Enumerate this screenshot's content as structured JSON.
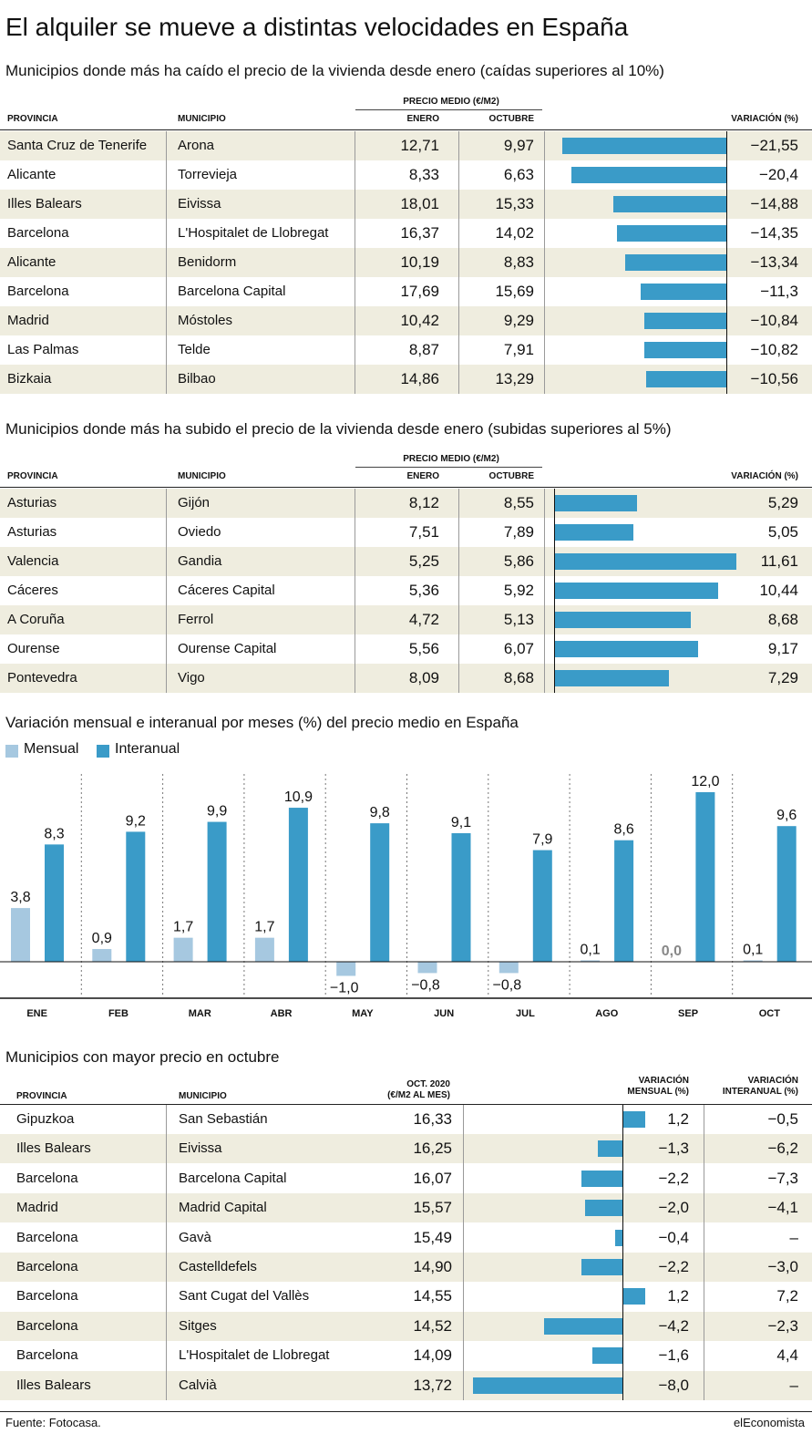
{
  "title": "El alquiler se mueve a distintas velocidades en España",
  "colors": {
    "interanual": "#3a9bc8",
    "mensual": "#a6c8e0",
    "row_shade": "#efeddf"
  },
  "tables": [
    {
      "title": "Municipios donde más ha caído el precio de la vivienda desde enero (caídas superiores al 10%)",
      "group_header": "PRECIO MEDIO (€/M2)",
      "headers": {
        "provincia": "PROVINCIA",
        "municipio": "MUNICIPIO",
        "enero": "ENERO",
        "octubre": "OCTUBRE",
        "variacion": "VARIACIÓN (%)"
      },
      "rows": [
        {
          "provincia": "Santa Cruz de Tenerife",
          "municipio": "Arona",
          "enero": "12,71",
          "octubre": "9,97",
          "variacion_label": "−21,55",
          "variacion": -21.55
        },
        {
          "provincia": "Alicante",
          "municipio": "Torrevieja",
          "enero": "8,33",
          "octubre": "6,63",
          "variacion_label": "−20,4",
          "variacion": -20.4
        },
        {
          "provincia": "Illes Balears",
          "municipio": "Eivissa",
          "enero": "18,01",
          "octubre": "15,33",
          "variacion_label": "−14,88",
          "variacion": -14.88
        },
        {
          "provincia": "Barcelona",
          "municipio": "L'Hospitalet de Llobregat",
          "enero": "16,37",
          "octubre": "14,02",
          "variacion_label": "−14,35",
          "variacion": -14.35
        },
        {
          "provincia": "Alicante",
          "municipio": "Benidorm",
          "enero": "10,19",
          "octubre": "8,83",
          "variacion_label": "−13,34",
          "variacion": -13.34
        },
        {
          "provincia": "Barcelona",
          "municipio": "Barcelona Capital",
          "enero": "17,69",
          "octubre": "15,69",
          "variacion_label": "−11,3",
          "variacion": -11.3
        },
        {
          "provincia": "Madrid",
          "municipio": "Móstoles",
          "enero": "10,42",
          "octubre": "9,29",
          "variacion_label": "−10,84",
          "variacion": -10.84
        },
        {
          "provincia": "Las Palmas",
          "municipio": "Telde",
          "enero": "8,87",
          "octubre": "7,91",
          "variacion_label": "−10,82",
          "variacion": -10.82
        },
        {
          "provincia": "Bizkaia",
          "municipio": "Bilbao",
          "enero": "14,86",
          "octubre": "13,29",
          "variacion_label": "−10,56",
          "variacion": -10.56
        }
      ]
    },
    {
      "title": "Municipios donde más ha subido el precio de la vivienda desde enero (subidas superiores al 5%)",
      "group_header": "PRECIO MEDIO (€/M2)",
      "headers": {
        "provincia": "PROVINCIA",
        "municipio": "MUNICIPIO",
        "enero": "ENERO",
        "octubre": "OCTUBRE",
        "variacion": "VARIACIÓN (%)"
      },
      "rows": [
        {
          "provincia": "Asturias",
          "municipio": "Gijón",
          "enero": "8,12",
          "octubre": "8,55",
          "variacion_label": "5,29",
          "variacion": 5.29
        },
        {
          "provincia": "Asturias",
          "municipio": "Oviedo",
          "enero": "7,51",
          "octubre": "7,89",
          "variacion_label": "5,05",
          "variacion": 5.05
        },
        {
          "provincia": "Valencia",
          "municipio": "Gandia",
          "enero": "5,25",
          "octubre": "5,86",
          "variacion_label": "11,61",
          "variacion": 11.61
        },
        {
          "provincia": "Cáceres",
          "municipio": "Cáceres Capital",
          "enero": "5,36",
          "octubre": "5,92",
          "variacion_label": "10,44",
          "variacion": 10.44
        },
        {
          "provincia": "A Coruña",
          "municipio": "Ferrol",
          "enero": "4,72",
          "octubre": "5,13",
          "variacion_label": "8,68",
          "variacion": 8.68
        },
        {
          "provincia": "Ourense",
          "municipio": "Ourense Capital",
          "enero": "5,56",
          "octubre": "6,07",
          "variacion_label": "9,17",
          "variacion": 9.17
        },
        {
          "provincia": "Pontevedra",
          "municipio": "Vigo",
          "enero": "8,09",
          "octubre": "8,68",
          "variacion_label": "7,29",
          "variacion": 7.29
        }
      ]
    }
  ],
  "chart_data": {
    "type": "bar",
    "title": "Variación mensual e interanual por meses (%) del precio medio en España",
    "categories": [
      "ENE",
      "FEB",
      "MAR",
      "ABR",
      "MAY",
      "JUN",
      "JUL",
      "AGO",
      "SEP",
      "OCT"
    ],
    "series": [
      {
        "name": "Mensual",
        "values": [
          3.8,
          0.9,
          1.7,
          1.7,
          -1.0,
          -0.8,
          -0.8,
          0.1,
          0.0,
          0.1
        ],
        "labels": [
          "3,8",
          "0,9",
          "1,7",
          "1,7",
          "−1,0",
          "−0,8",
          "−0,8",
          "0,1",
          "0,0",
          "0,1"
        ]
      },
      {
        "name": "Interanual",
        "values": [
          8.3,
          9.2,
          9.9,
          10.9,
          9.8,
          9.1,
          7.9,
          8.6,
          12.0,
          9.6
        ],
        "labels": [
          "8,3",
          "9,2",
          "9,9",
          "10,9",
          "9,8",
          "9,1",
          "7,9",
          "8,6",
          "12,0",
          "9,6"
        ]
      }
    ],
    "ylim": [
      -1.5,
      12.0
    ],
    "legend": "top-left",
    "grid": false
  },
  "price_table": {
    "title": "Municipios con mayor precio en octubre",
    "headers": {
      "provincia": "PROVINCIA",
      "municipio": "MUNICIPIO",
      "oct_line1": "OCT. 2020",
      "oct_line2": "(€/M2 AL MES)",
      "mensual_line1": "VARIACIÓN",
      "mensual_line2": "MENSUAL (%)",
      "interanual_line1": "VARIACIÓN",
      "interanual_line2": "INTERANUAL (%)"
    },
    "rows": [
      {
        "provincia": "Gipuzkoa",
        "municipio": "San Sebastián",
        "precio": "16,33",
        "mensual_label": "1,2",
        "mensual": 1.2,
        "interanual": "−0,5"
      },
      {
        "provincia": "Illes Balears",
        "municipio": "Eivissa",
        "precio": "16,25",
        "mensual_label": "−1,3",
        "mensual": -1.3,
        "interanual": "−6,2"
      },
      {
        "provincia": "Barcelona",
        "municipio": "Barcelona Capital",
        "precio": "16,07",
        "mensual_label": "−2,2",
        "mensual": -2.2,
        "interanual": "−7,3"
      },
      {
        "provincia": "Madrid",
        "municipio": "Madrid Capital",
        "precio": "15,57",
        "mensual_label": "−2,0",
        "mensual": -2.0,
        "interanual": "−4,1"
      },
      {
        "provincia": "Barcelona",
        "municipio": "Gavà",
        "precio": "15,49",
        "mensual_label": "−0,4",
        "mensual": -0.4,
        "interanual": "–"
      },
      {
        "provincia": "Barcelona",
        "municipio": "Castelldefels",
        "precio": "14,90",
        "mensual_label": "−2,2",
        "mensual": -2.2,
        "interanual": "−3,0"
      },
      {
        "provincia": "Barcelona",
        "municipio": "Sant Cugat del Vallès",
        "precio": "14,55",
        "mensual_label": "1,2",
        "mensual": 1.2,
        "interanual": "7,2"
      },
      {
        "provincia": "Barcelona",
        "municipio": "Sitges",
        "precio": "14,52",
        "mensual_label": "−4,2",
        "mensual": -4.2,
        "interanual": "−2,3"
      },
      {
        "provincia": "Barcelona",
        "municipio": "L'Hospitalet de Llobregat",
        "precio": "14,09",
        "mensual_label": "−1,6",
        "mensual": -1.6,
        "interanual": "4,4"
      },
      {
        "provincia": "Illes Balears",
        "municipio": "Calvià",
        "precio": "13,72",
        "mensual_label": "−8,0",
        "mensual": -8.0,
        "interanual": "–"
      }
    ]
  },
  "footer": {
    "source": "Fuente: Fotocasa.",
    "brand": "elEconomista"
  }
}
